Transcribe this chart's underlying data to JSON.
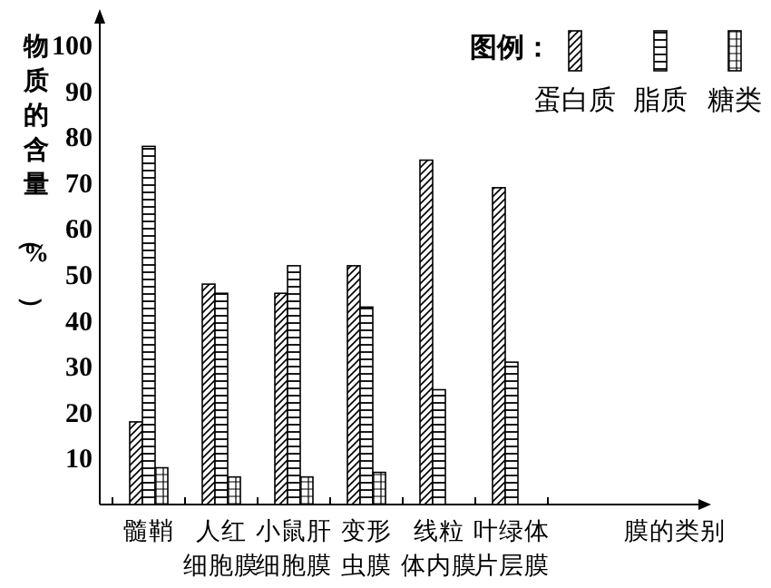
{
  "chart_data": {
    "type": "bar",
    "xlabel": "膜的类别",
    "ylabel": "物质的含量（%）",
    "legend_title": "图例：",
    "categories": [
      "髓鞘",
      "人红细胞膜",
      "小鼠肝细胞膜",
      "变形虫膜",
      "线粒体内膜",
      "叶绿体片层膜"
    ],
    "series": [
      {
        "name": "蛋白质",
        "color": "#000000",
        "values": [
          18,
          48,
          46,
          52,
          75,
          69
        ]
      },
      {
        "name": "脂质",
        "color": "#000000",
        "values": [
          78,
          46,
          52,
          43,
          25,
          31
        ]
      },
      {
        "name": "糖类",
        "color": "#000000",
        "values": [
          8,
          6,
          6,
          7,
          null,
          null
        ]
      }
    ],
    "ylim": [
      0,
      100
    ],
    "yticks": [
      10,
      20,
      30,
      40,
      50,
      60,
      70,
      80,
      90,
      100
    ],
    "legend": "top right",
    "grid": false
  }
}
